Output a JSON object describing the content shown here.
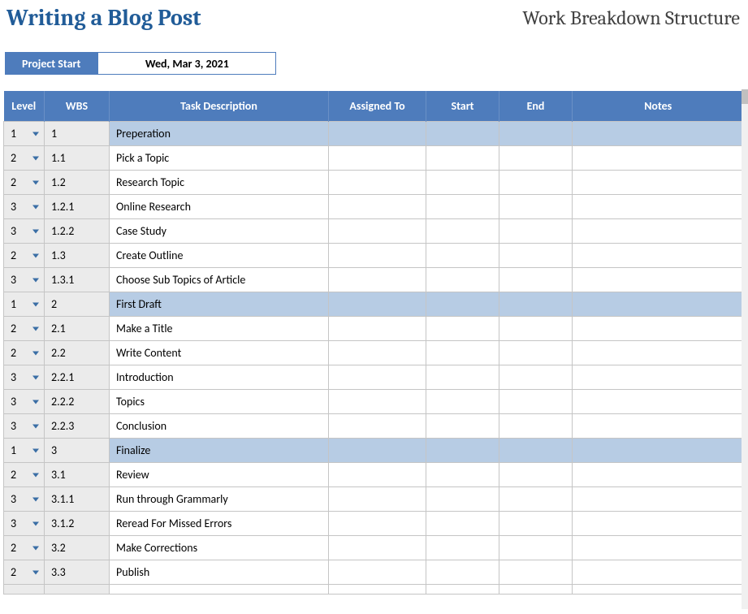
{
  "header": {
    "title": "Writing a Blog Post",
    "subtitle": "Work Breakdown Structure"
  },
  "project": {
    "start_label": "Project Start",
    "start_value": "Wed, Mar 3, 2021"
  },
  "table": {
    "columns": {
      "level": "Level",
      "wbs": "WBS",
      "desc": "Task Description",
      "assigned": "Assigned To",
      "start": "Start",
      "end": "End",
      "notes": "Notes"
    },
    "rows": [
      {
        "level": "1",
        "wbs": "1",
        "desc": "Preperation",
        "assigned": "",
        "start": "",
        "end": "",
        "notes": ""
      },
      {
        "level": "2",
        "wbs": "1.1",
        "desc": "Pick a Topic",
        "assigned": "",
        "start": "",
        "end": "",
        "notes": ""
      },
      {
        "level": "2",
        "wbs": "1.2",
        "desc": "Research Topic",
        "assigned": "",
        "start": "",
        "end": "",
        "notes": ""
      },
      {
        "level": "3",
        "wbs": "1.2.1",
        "desc": "Online Research",
        "assigned": "",
        "start": "",
        "end": "",
        "notes": ""
      },
      {
        "level": "3",
        "wbs": "1.2.2",
        "desc": "Case Study",
        "assigned": "",
        "start": "",
        "end": "",
        "notes": ""
      },
      {
        "level": "2",
        "wbs": "1.3",
        "desc": "Create Outline",
        "assigned": "",
        "start": "",
        "end": "",
        "notes": ""
      },
      {
        "level": "3",
        "wbs": "1.3.1",
        "desc": "Choose Sub Topics of Article",
        "assigned": "",
        "start": "",
        "end": "",
        "notes": ""
      },
      {
        "level": "1",
        "wbs": "2",
        "desc": "First Draft",
        "assigned": "",
        "start": "",
        "end": "",
        "notes": ""
      },
      {
        "level": "2",
        "wbs": "2.1",
        "desc": "Make a Title",
        "assigned": "",
        "start": "",
        "end": "",
        "notes": ""
      },
      {
        "level": "2",
        "wbs": "2.2",
        "desc": "Write Content",
        "assigned": "",
        "start": "",
        "end": "",
        "notes": ""
      },
      {
        "level": "3",
        "wbs": "2.2.1",
        "desc": "Introduction",
        "assigned": "",
        "start": "",
        "end": "",
        "notes": ""
      },
      {
        "level": "3",
        "wbs": "2.2.2",
        "desc": "Topics",
        "assigned": "",
        "start": "",
        "end": "",
        "notes": ""
      },
      {
        "level": "3",
        "wbs": "2.2.3",
        "desc": "Conclusion",
        "assigned": "",
        "start": "",
        "end": "",
        "notes": ""
      },
      {
        "level": "1",
        "wbs": "3",
        "desc": "Finalize",
        "assigned": "",
        "start": "",
        "end": "",
        "notes": ""
      },
      {
        "level": "2",
        "wbs": "3.1",
        "desc": "Review",
        "assigned": "",
        "start": "",
        "end": "",
        "notes": ""
      },
      {
        "level": "3",
        "wbs": "3.1.1",
        "desc": "Run through Grammarly",
        "assigned": "",
        "start": "",
        "end": "",
        "notes": ""
      },
      {
        "level": "3",
        "wbs": "3.1.2",
        "desc": "Reread For Missed Errors",
        "assigned": "",
        "start": "",
        "end": "",
        "notes": ""
      },
      {
        "level": "2",
        "wbs": "3.2",
        "desc": "Make Corrections",
        "assigned": "",
        "start": "",
        "end": "",
        "notes": ""
      },
      {
        "level": "2",
        "wbs": "3.3",
        "desc": "Publish",
        "assigned": "",
        "start": "",
        "end": "",
        "notes": ""
      }
    ]
  },
  "colors": {
    "header_blue": "#4e7cbc",
    "title_blue": "#215c98",
    "level1_row": "#b7cce4",
    "gray_cell": "#ebebeb",
    "border": "#c5c5c5",
    "dropdown_arrow": "#3a6ea5"
  }
}
